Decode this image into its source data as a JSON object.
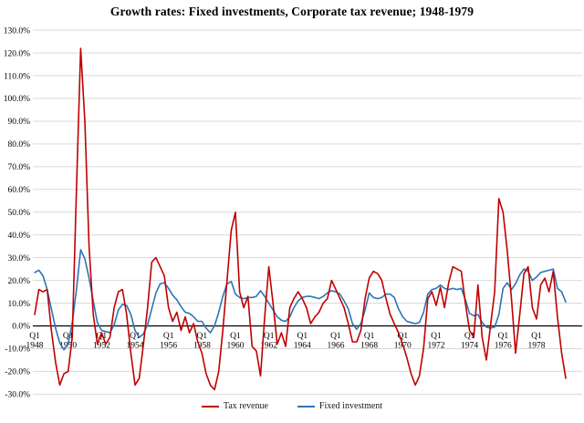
{
  "title": "Growth rates: Fixed investments, Corporate tax revenue; 1948-1979",
  "legend": {
    "items": [
      {
        "label": "Tax revenue",
        "color": "#C00000"
      },
      {
        "label": "Fixed investment",
        "color": "#2E74B5"
      }
    ]
  },
  "chart_data": {
    "type": "line",
    "title": "Growth rates: Fixed investments, Corporate tax revenue; 1948-1979",
    "x_unit": "quarter",
    "x_range": "1948Q1 - 1979Q4",
    "grid": true,
    "legend_position": "bottom",
    "ylim": [
      -30,
      130
    ],
    "ytick_step": 10,
    "y_tick_labels": [
      "130.0%",
      "120.0%",
      "110.0%",
      "100.0%",
      "90.0%",
      "80.0%",
      "70.0%",
      "60.0%",
      "50.0%",
      "40.0%",
      "30.0%",
      "20.0%",
      "10.0%",
      "0.0%",
      "-10.0%",
      "-20.0%",
      "-30.0%"
    ],
    "x_ticks": [
      {
        "quarter": "Q1",
        "year": "1948"
      },
      {
        "quarter": "Q1",
        "year": "1950"
      },
      {
        "quarter": "Q1",
        "year": "1952"
      },
      {
        "quarter": "Q1",
        "year": "1954"
      },
      {
        "quarter": "Q1",
        "year": "1956"
      },
      {
        "quarter": "Q1",
        "year": "1958"
      },
      {
        "quarter": "Q1",
        "year": "1960"
      },
      {
        "quarter": "Q1",
        "year": "1962"
      },
      {
        "quarter": "Q1",
        "year": "1964"
      },
      {
        "quarter": "Q1",
        "year": "1966"
      },
      {
        "quarter": "Q1",
        "year": "1968"
      },
      {
        "quarter": "Q1",
        "year": "1970"
      },
      {
        "quarter": "Q1",
        "year": "1972"
      },
      {
        "quarter": "Q1",
        "year": "1974"
      },
      {
        "quarter": "Q1",
        "year": "1976"
      },
      {
        "quarter": "Q1",
        "year": "1978"
      }
    ],
    "series": [
      {
        "name": "Tax revenue",
        "color": "#C00000",
        "values": [
          5,
          16,
          15,
          16,
          -2,
          -16,
          -26,
          -21,
          -20,
          -5,
          60,
          122,
          90,
          35,
          5,
          -8,
          -3,
          -8,
          -5,
          8,
          15,
          16,
          5,
          -12,
          -26,
          -23,
          -8,
          8,
          28,
          30,
          26,
          22,
          8,
          2,
          6,
          -2,
          4,
          -3,
          1,
          -7,
          -12,
          -21,
          -26,
          -28,
          -20,
          -2,
          20,
          42,
          50,
          15,
          8,
          13,
          -9,
          -11,
          -22,
          4,
          26,
          10,
          -8,
          -3,
          -9,
          8,
          12,
          15,
          12,
          8,
          1,
          4,
          6,
          10,
          12,
          20,
          16,
          12,
          8,
          1,
          -7,
          -7,
          -2,
          12,
          21,
          24,
          23,
          20,
          12,
          5,
          1,
          -3,
          -8,
          -14,
          -21,
          -26,
          -22,
          -10,
          12,
          15,
          9,
          17,
          8,
          19,
          26,
          25,
          24,
          10,
          -2,
          -5,
          18,
          -5,
          -15,
          0,
          15,
          56,
          50,
          33,
          12,
          -12,
          5,
          23,
          26,
          8,
          3,
          18,
          21,
          15,
          24,
          4,
          -12,
          -23
        ]
      },
      {
        "name": "Fixed investment",
        "color": "#2E74B5",
        "values": [
          23.5,
          24.5,
          22,
          16,
          7.5,
          -1,
          -7.5,
          -10.5,
          -8,
          1.5,
          16,
          33.5,
          29.5,
          21,
          11,
          1.5,
          -2,
          -2.5,
          -3,
          0.5,
          7,
          9.5,
          9,
          5,
          -2,
          -5,
          -3.5,
          0.5,
          7.5,
          14.5,
          18.5,
          19,
          16.5,
          13.5,
          11.5,
          8.5,
          6,
          5.5,
          4,
          2,
          2,
          -1,
          -3,
          0,
          6,
          13,
          18.5,
          19.5,
          14,
          12.5,
          12,
          12.5,
          12.5,
          13,
          15.5,
          13,
          10,
          7,
          4,
          2.5,
          2,
          4,
          8,
          11,
          12.5,
          13,
          13,
          12.5,
          12,
          13,
          14.5,
          15.5,
          15,
          14,
          11,
          7.5,
          1,
          -1.5,
          1,
          7,
          14.5,
          12.5,
          12,
          12.5,
          14,
          14,
          12.5,
          7.5,
          4,
          2,
          1.5,
          1,
          1.5,
          6,
          14,
          16,
          16.5,
          18,
          16.5,
          16,
          16.5,
          16,
          16.5,
          11.5,
          5.5,
          4.5,
          5,
          1.5,
          -0.5,
          -1,
          -0.5,
          5,
          16.5,
          19,
          16,
          18.5,
          22.5,
          25,
          24,
          20,
          21.5,
          23.5,
          24,
          24.5,
          25,
          16.5,
          15,
          10.5
        ]
      }
    ]
  }
}
